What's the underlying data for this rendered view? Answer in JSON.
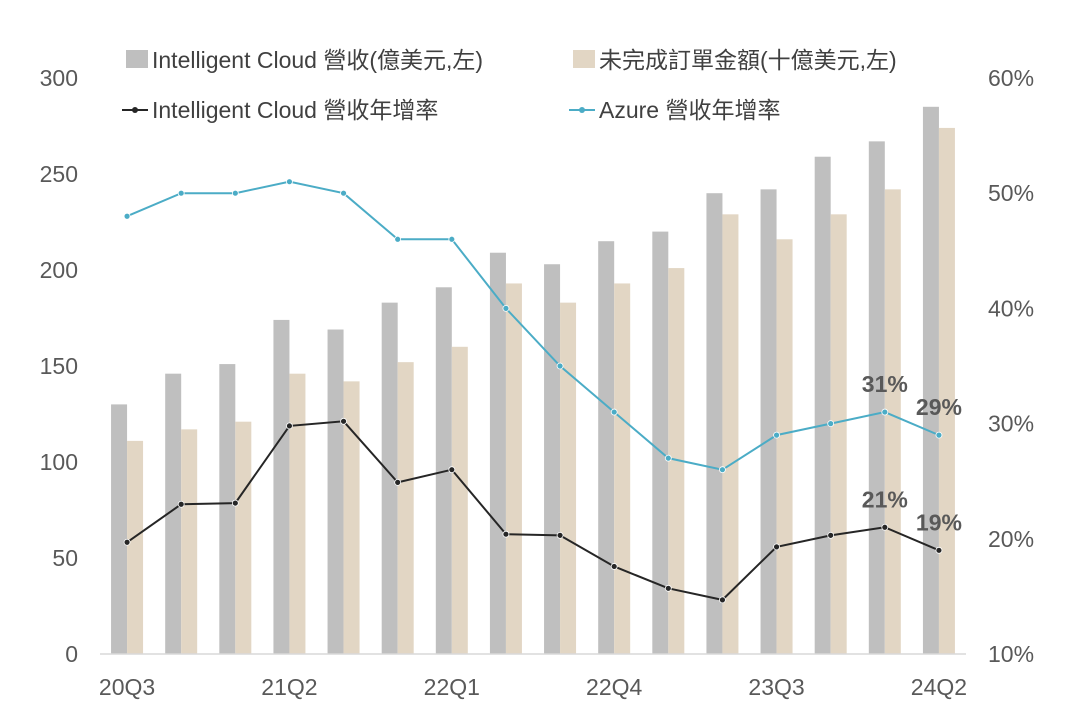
{
  "colors": {
    "cloud_revenue": "#bfbfbf",
    "backlog": "#e2d6c4",
    "cloud_growth": "#262626",
    "azure_growth": "#4bacc6",
    "axis": "#d9d9d9",
    "tick_text": "#595959"
  },
  "chart_data": {
    "type": "bar",
    "title": "",
    "xlabel": "",
    "ylabel": "",
    "categories": [
      "20Q3",
      "20Q4",
      "21Q1",
      "21Q2",
      "21Q3",
      "21Q4",
      "22Q1",
      "22Q2",
      "22Q3",
      "22Q4",
      "23Q1",
      "23Q2",
      "23Q3",
      "23Q4",
      "24Q1",
      "24Q2"
    ],
    "x_tick_labels": [
      "20Q3",
      "21Q2",
      "22Q1",
      "22Q4",
      "23Q3",
      "24Q2"
    ],
    "x_tick_indices": [
      0,
      3,
      6,
      9,
      12,
      15
    ],
    "ylim": [
      0,
      300
    ],
    "y_ticks": [
      "0",
      "50",
      "100",
      "150",
      "200",
      "250",
      "300"
    ],
    "y2lim": [
      10,
      60
    ],
    "y2_ticks": [
      "10%",
      "20%",
      "30%",
      "40%",
      "50%",
      "60%"
    ],
    "legend_position": "top",
    "series": [
      {
        "name": "Intelligent Cloud 營收(億美元,左)",
        "kind": "bar",
        "axis": "left",
        "values": [
          130,
          146,
          151,
          174,
          169,
          183,
          191,
          209,
          203,
          215,
          220,
          240,
          242,
          259,
          267,
          285
        ]
      },
      {
        "name": "未完成訂單金額(十億美元,左)",
        "kind": "bar",
        "axis": "left",
        "values": [
          111,
          117,
          121,
          146,
          142,
          152,
          160,
          193,
          183,
          193,
          201,
          229,
          216,
          229,
          242,
          274
        ]
      },
      {
        "name": "Intelligent Cloud 營收年增率",
        "kind": "line",
        "axis": "right",
        "values": [
          19.7,
          23.0,
          23.1,
          29.8,
          30.2,
          24.9,
          26.0,
          20.4,
          20.3,
          17.6,
          15.7,
          14.7,
          19.3,
          20.3,
          21.0,
          19.0
        ]
      },
      {
        "name": "Azure 營收年增率",
        "kind": "line",
        "axis": "right",
        "values": [
          48,
          50,
          50,
          51,
          50,
          46,
          46,
          40,
          35,
          31,
          27,
          26,
          29,
          30,
          31,
          29
        ]
      }
    ],
    "annotations": [
      {
        "series": 3,
        "index": 14,
        "text": "31%"
      },
      {
        "series": 3,
        "index": 15,
        "text": "29%"
      },
      {
        "series": 2,
        "index": 14,
        "text": "21%"
      },
      {
        "series": 2,
        "index": 15,
        "text": "19%"
      }
    ]
  }
}
